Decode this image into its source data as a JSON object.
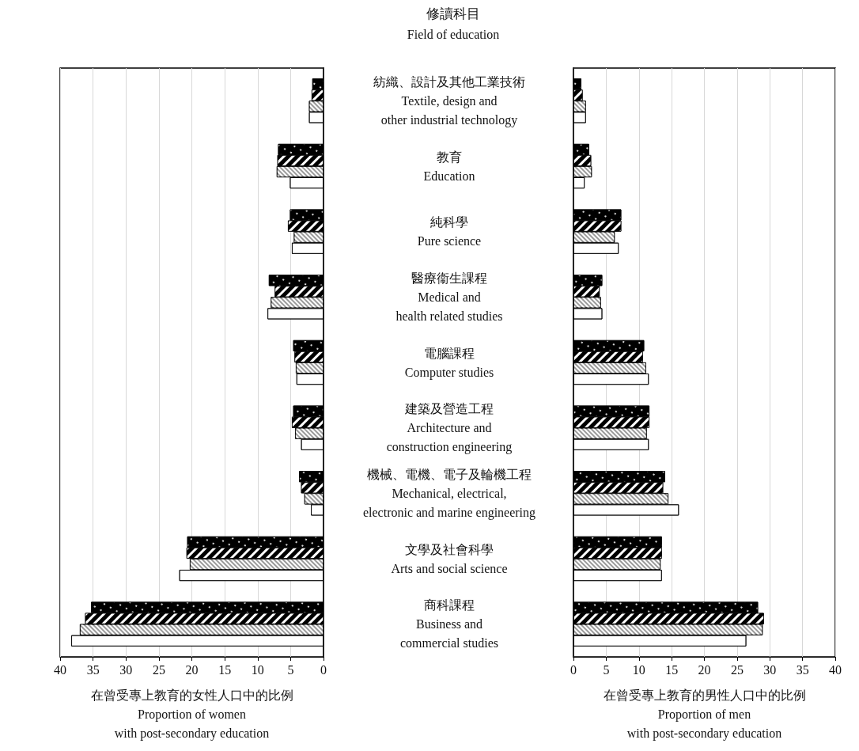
{
  "chart_data": [
    {
      "type": "bar",
      "orientation": "horizontal",
      "title": "修讀科目",
      "subtitle": "Field of education",
      "xlabel": "在曾受專上教育的女性人口中的比例\nProportion of women\nwith post-secondary education",
      "categories": [
        "紡織、設計及其他工業技術\nTextile, design and\nother industrial technology",
        "教育\nEducation",
        "純科學\nPure science",
        "醫療衞生課程\nMedical and\nhealth related studies",
        "電腦課程\nComputer studies",
        "建築及營造工程\nArchitecture and\nconstruction engineering",
        "機械、電機、電子及輪機工程\nMechanical, electrical,\nelectronic and marine engineering",
        "文學及社會科學\nArts and social science",
        "商科課程\nBusiness and\ncommercial studies"
      ],
      "series": [
        {
          "color": "#000000",
          "values": [
            1.7,
            6.9,
            5.1,
            8.3,
            4.6,
            4.6,
            3.7,
            20.7,
            35.3
          ]
        },
        {
          "color": "#000000",
          "values": [
            1.8,
            7.0,
            5.4,
            7.4,
            4.4,
            4.8,
            3.4,
            20.8,
            36.2
          ]
        },
        {
          "color": "#9a9a9a",
          "values": [
            2.2,
            7.1,
            4.5,
            8.0,
            4.2,
            4.3,
            2.9,
            20.3,
            37.0
          ]
        },
        {
          "color": "#ffffff",
          "values": [
            2.2,
            5.1,
            4.8,
            8.5,
            4.1,
            3.4,
            1.9,
            21.9,
            38.3
          ]
        }
      ],
      "xlim": [
        40,
        0
      ],
      "xticks": [
        0,
        5,
        10,
        15,
        20,
        25,
        30,
        35,
        40
      ],
      "grid": "x"
    },
    {
      "type": "bar",
      "orientation": "horizontal",
      "xlabel": "在曾受專上教育的男性人口中的比例\nProportion of men\nwith post-secondary education",
      "categories": [
        null,
        null,
        null,
        null,
        null,
        null,
        null,
        null,
        null
      ],
      "series": [
        {
          "color": "#000000",
          "values": [
            1.2,
            2.4,
            7.3,
            4.4,
            10.8,
            11.6,
            14.0,
            13.5,
            28.2
          ]
        },
        {
          "color": "#000000",
          "values": [
            1.4,
            2.7,
            7.3,
            4.0,
            10.6,
            11.6,
            13.7,
            13.5,
            29.1
          ]
        },
        {
          "color": "#9a9a9a",
          "values": [
            1.9,
            2.8,
            6.3,
            4.2,
            11.1,
            11.2,
            14.5,
            13.3,
            28.9
          ]
        },
        {
          "color": "#ffffff",
          "values": [
            1.9,
            1.7,
            6.9,
            4.4,
            11.5,
            11.5,
            16.1,
            13.5,
            26.4
          ]
        }
      ],
      "xlim": [
        0,
        40
      ],
      "xticks": [
        0,
        5,
        10,
        15,
        20,
        25,
        30,
        35,
        40
      ],
      "grid": "x",
      "tick_labels": "x"
    }
  ]
}
